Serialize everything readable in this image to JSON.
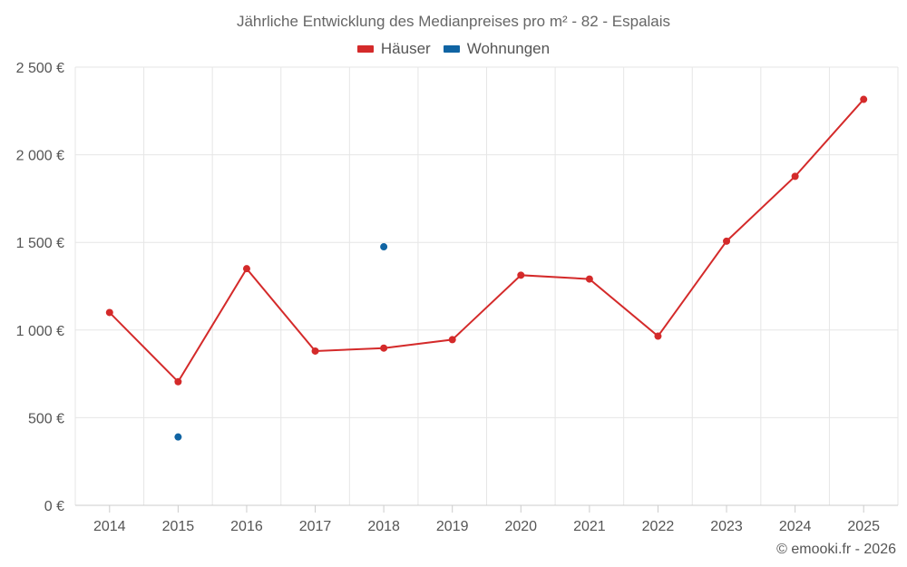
{
  "chart_data": {
    "type": "line",
    "title": "Jährliche Entwicklung des Medianpreises pro m² - 82 - Espalais",
    "xlabel": "",
    "ylabel": "",
    "categories": [
      "2014",
      "2015",
      "2016",
      "2017",
      "2018",
      "2019",
      "2020",
      "2021",
      "2022",
      "2023",
      "2024",
      "2025"
    ],
    "ylim": [
      0,
      2500
    ],
    "yticks": [
      0,
      500,
      1000,
      1500,
      2000,
      2500
    ],
    "ytick_labels": [
      "0 €",
      "500 €",
      "1 000 €",
      "1 500 €",
      "2 000 €",
      "2 500 €"
    ],
    "grid": true,
    "legend_position": "top-center",
    "series": [
      {
        "name": "Häuser",
        "color": "#d42a2a",
        "line": true,
        "values": [
          1100,
          705,
          1350,
          880,
          897,
          945,
          1313,
          1291,
          965,
          1507,
          1877,
          2316
        ]
      },
      {
        "name": "Wohnungen",
        "color": "#1064a3",
        "line": false,
        "values": [
          null,
          390,
          null,
          null,
          1475,
          null,
          null,
          null,
          null,
          null,
          null,
          null
        ]
      }
    ]
  },
  "credit": "© emooki.fr - 2026"
}
